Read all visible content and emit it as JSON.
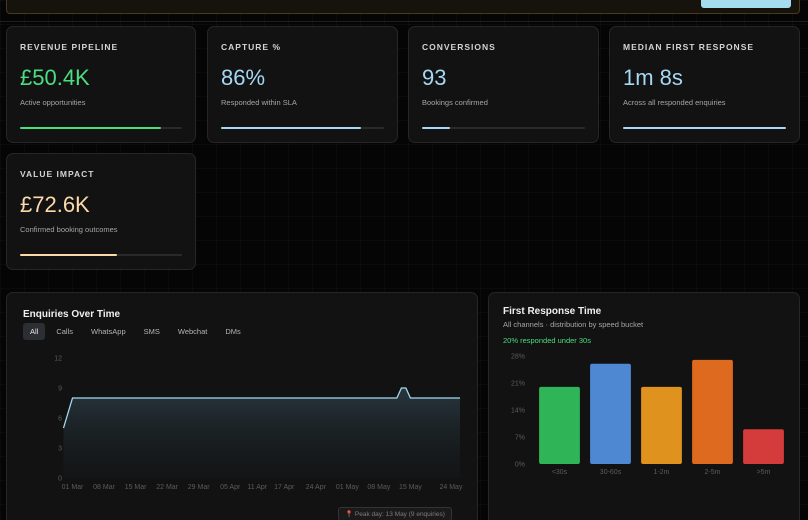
{
  "banner": {
    "text": ""
  },
  "kpis": [
    {
      "label": "REVENUE PIPELINE",
      "value": "£50.4K",
      "sub": "Active opportunities",
      "color": "#4ade80",
      "progress": 0.87
    },
    {
      "label": "CAPTURE %",
      "value": "86%",
      "sub": "Responded within SLA",
      "color": "#a5d8f3",
      "progress": 0.86
    },
    {
      "label": "CONVERSIONS",
      "value": "93",
      "sub": "Bookings confirmed",
      "color": "#a5d8f3",
      "progress": 0.17
    },
    {
      "label": "MEDIAN FIRST RESPONSE",
      "value": "1m 8s",
      "sub": "Across all responded enquiries",
      "color": "#a5d8f3",
      "progress": 1.0
    },
    {
      "label": "VALUE IMPACT",
      "value": "£72.6K",
      "sub": "Confirmed booking outcomes",
      "color": "#fcd9a8",
      "progress": 0.6
    }
  ],
  "enquiries": {
    "title": "Enquiries Over Time",
    "tabs": [
      "All",
      "Calls",
      "WhatsApp",
      "SMS",
      "Webchat",
      "DMs"
    ],
    "active_tab": "All",
    "peak_note": "Peak day: 13 May (9 enquiries)"
  },
  "response": {
    "title": "First Response Time",
    "subtitle": "All channels · distribution by speed bucket",
    "highlight": "20% responded under 30s"
  },
  "chart_data": [
    {
      "type": "area",
      "title": "Enquiries Over Time",
      "x_ticks": [
        "01 Mar",
        "08 Mar",
        "15 Mar",
        "22 Mar",
        "29 Mar",
        "05 Apr",
        "11 Apr",
        "17 Apr",
        "24 Apr",
        "01 May",
        "08 May",
        "15 May",
        "24 May"
      ],
      "x": [
        "28 Feb",
        "01 Mar",
        "02 Mar",
        "05 Apr",
        "11 May",
        "12 May",
        "13 May",
        "14 May",
        "15 May",
        "26 May"
      ],
      "values": [
        5,
        8,
        8,
        8,
        8,
        8,
        9,
        9,
        8,
        8
      ],
      "ylim": [
        0,
        12
      ],
      "y_ticks": [
        0,
        3,
        6,
        9,
        12
      ],
      "color": "#a5d8f3"
    },
    {
      "type": "bar",
      "title": "First Response Time",
      "categories": [
        "<30s",
        "30-60s",
        "1-2m",
        "2-5m",
        ">5m"
      ],
      "values": [
        20,
        26,
        20,
        27,
        9
      ],
      "colors": [
        "#2fb457",
        "#4f88d2",
        "#e0921f",
        "#dd6a1e",
        "#d43b3b"
      ],
      "ylim": [
        0,
        28
      ],
      "y_ticks": [
        "0%",
        "7%",
        "14%",
        "21%",
        "28%"
      ]
    }
  ]
}
